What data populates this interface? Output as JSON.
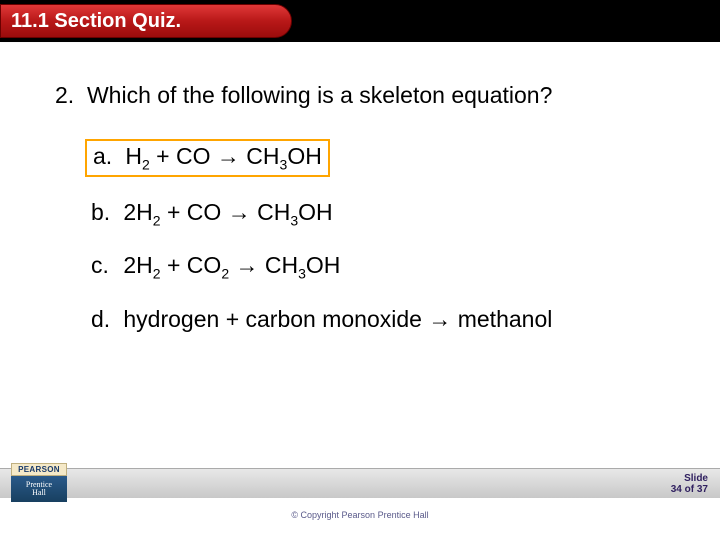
{
  "header": {
    "title": "11.1 Section Quiz."
  },
  "question": {
    "number": "2.",
    "text": "Which of the following is a skeleton equation?"
  },
  "options": [
    {
      "letter": "a.",
      "pre": "H",
      "sub1": "2",
      "mid1": " + CO ",
      "arrow": "→",
      "mid2": " CH",
      "sub2": "3",
      "post": "OH",
      "highlighted": true
    },
    {
      "letter": "b.",
      "pre": "2H",
      "sub1": "2",
      "mid1": " + CO ",
      "arrow": "→",
      "mid2": " CH",
      "sub2": "3",
      "post": "OH",
      "highlighted": false
    },
    {
      "letter": "c.",
      "pre": "2H",
      "sub1": "2",
      "mid1": " + CO",
      "sub1b": "2",
      "mid1b": " ",
      "arrow": "→",
      "mid2": " CH",
      "sub2": "3",
      "post": "OH",
      "highlighted": false
    },
    {
      "letter": "d.",
      "plain": "hydrogen + carbon monoxide ",
      "arrow": "→",
      "post": " methanol",
      "highlighted": false
    }
  ],
  "footer": {
    "slide_label": "Slide",
    "slide_num": "34 of  37",
    "copyright": "© Copyright Pearson Prentice Hall",
    "logo_top": "PEARSON",
    "logo_line1": "Prentice",
    "logo_line2": "Hall"
  }
}
